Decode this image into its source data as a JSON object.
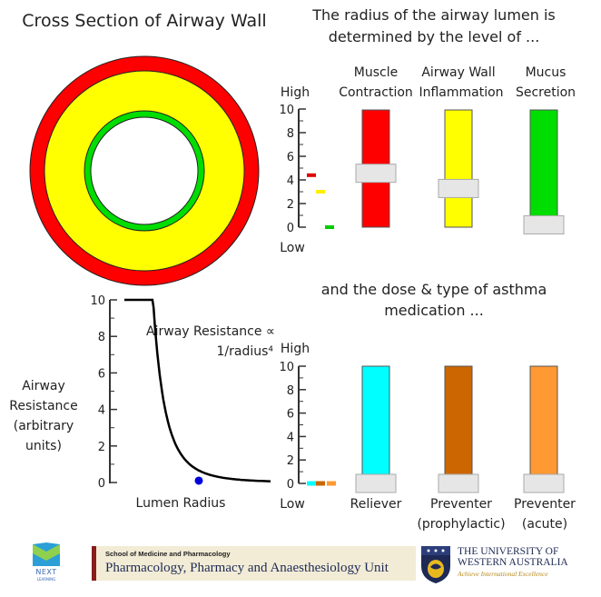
{
  "cross_section": {
    "title": "Cross Section of Airway Wall",
    "colors": {
      "outer": "#ff0000",
      "wall": "#ffff00",
      "mucus": "#00dd00",
      "lumen": "#ffffff"
    }
  },
  "top_panel": {
    "heading_line1": "The radius of the airway lumen is",
    "heading_line2": "determined by the level of ...",
    "scale": {
      "high": "High",
      "low": "Low",
      "ticks": [
        "0",
        "2",
        "4",
        "6",
        "8",
        "10"
      ]
    },
    "sliders": [
      {
        "id": "muscle",
        "label_line1": "Muscle",
        "label_line2": "Contraction",
        "color": "#ff0000",
        "value": 4.6
      },
      {
        "id": "inflammation",
        "label_line1": "Airway Wall",
        "label_line2": "Inflammation",
        "color": "#ffff00",
        "value": 3.3
      },
      {
        "id": "mucus",
        "label_line1": "Mucus",
        "label_line2": "Secretion",
        "color": "#00dd00",
        "value": 0.2
      }
    ],
    "markers": [
      {
        "color": "#dd0000",
        "value": 4.4
      },
      {
        "color": "#ffee00",
        "value": 3.0
      },
      {
        "color": "#00cc00",
        "value": 0.0
      }
    ]
  },
  "bottom_panel": {
    "heading_line1": "and the dose & type of asthma",
    "heading_line2": "medication ...",
    "scale": {
      "high": "High",
      "low": "Low",
      "ticks": [
        "0",
        "2",
        "4",
        "6",
        "8",
        "10"
      ]
    },
    "sliders": [
      {
        "id": "reliever",
        "label_line1": "Reliever",
        "label_line2": "",
        "color": "#00ffff",
        "value": 0
      },
      {
        "id": "prophylactic",
        "label_line1": "Preventer",
        "label_line2": "(prophylactic)",
        "color": "#cc6600",
        "value": 0
      },
      {
        "id": "acute",
        "label_line1": "Preventer",
        "label_line2": "(acute)",
        "color": "#ff9933",
        "value": 0
      }
    ],
    "markers": [
      {
        "color": "#00ffff",
        "value": 0
      },
      {
        "color": "#cc6600",
        "value": 0
      },
      {
        "color": "#ff9933",
        "value": 0
      }
    ]
  },
  "resistance_chart": {
    "ylabel_line1": "Airway",
    "ylabel_line2": "Resistance",
    "ylabel_line3": "(arbitrary",
    "ylabel_line4": "units)",
    "xlabel": "Lumen Radius",
    "annotation_line1": "Airway Resistance ∝",
    "annotation_line2": "1/radius⁴",
    "ticks": [
      "0",
      "2",
      "4",
      "6",
      "8",
      "10"
    ],
    "curve_color": "#000000",
    "point_color": "#0000dd",
    "point_value": 0.1
  },
  "footer": {
    "next_label": "NEXT",
    "next_sub": "LEARNING",
    "school": "School of Medicine and Pharmacology",
    "unit": "Pharmacology, Pharmacy and Anaesthesiology Unit",
    "uni_line1": "THE UNIVERSITY OF",
    "uni_line2": "WESTERN AUSTRALIA",
    "motto": "Achieve International Excellence"
  }
}
